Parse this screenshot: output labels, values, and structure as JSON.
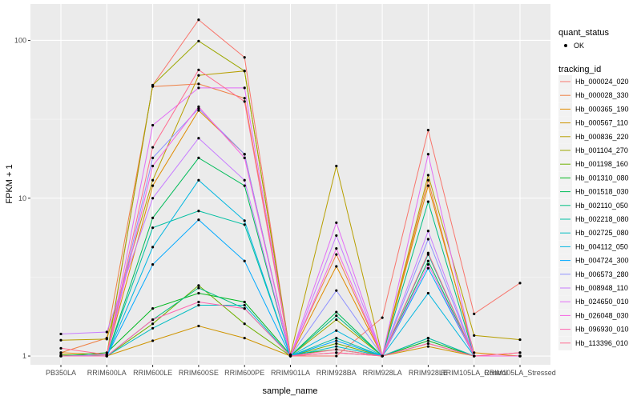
{
  "chart_data": {
    "type": "line",
    "x_axis_title": "sample_name",
    "y_axis_title": "FPKM + 1",
    "y_scale": "log10",
    "ylim": [
      0.88,
      170
    ],
    "y_ticks": [
      1,
      10,
      100
    ],
    "y_tick_labels": [
      "1",
      "10",
      "100"
    ],
    "grid": true,
    "legend_position": "right",
    "categories": [
      "PB350LA",
      "RRIM600LA",
      "RRIM600LE",
      "RRIM600SE",
      "RRIM600PE",
      "RRIM901LA",
      "RRIM928BA",
      "RRIM928LA",
      "RRIM928LE",
      "RRIM105LA_Control",
      "RRIM105LA_Stressed"
    ],
    "quant_legend": {
      "title": "quant_status",
      "entries": [
        "OK"
      ]
    },
    "series_legend_title": "tracking_id",
    "series": [
      {
        "name": "Hb_000024_020",
        "color": "#F8766D",
        "values": [
          1.0,
          1.0,
          52,
          135,
          78,
          1.0,
          1.0,
          1.75,
          27,
          1.85,
          2.9
        ]
      },
      {
        "name": "Hb_000028_330",
        "color": "#EE8044",
        "values": [
          1.05,
          1.3,
          51,
          53,
          43,
          1.02,
          4.4,
          1.0,
          13,
          1.0,
          1.0
        ]
      },
      {
        "name": "Hb_000365_190",
        "color": "#E08B00",
        "values": [
          1.05,
          1.02,
          12,
          36,
          19,
          1.0,
          3.7,
          1.0,
          12,
          1.05,
          1.0
        ]
      },
      {
        "name": "Hb_000567_110",
        "color": "#CF9400",
        "values": [
          1.0,
          1.0,
          1.25,
          1.55,
          1.3,
          1.0,
          1.05,
          1.0,
          1.15,
          1.0,
          1.0
        ]
      },
      {
        "name": "Hb_000836_220",
        "color": "#B79F00",
        "values": [
          1.26,
          1.28,
          13,
          60,
          64,
          1.02,
          16,
          1.0,
          14,
          1.35,
          1.27
        ]
      },
      {
        "name": "Hb_001104_270",
        "color": "#9CA700",
        "values": [
          1.0,
          1.02,
          52,
          99,
          64,
          1.0,
          1.7,
          1.0,
          1.3,
          1.0,
          1.0
        ]
      },
      {
        "name": "Hb_001198_160",
        "color": "#6FB000",
        "values": [
          1.02,
          1.0,
          1.6,
          2.8,
          1.6,
          1.0,
          1.2,
          1.0,
          1.2,
          1.0,
          1.0
        ]
      },
      {
        "name": "Hb_001310_080",
        "color": "#00B81F",
        "values": [
          1.0,
          1.05,
          2.0,
          2.5,
          2.2,
          1.02,
          1.1,
          1.0,
          1.25,
          1.0,
          1.0
        ]
      },
      {
        "name": "Hb_001518_030",
        "color": "#00BC59",
        "values": [
          1.0,
          1.0,
          7.5,
          18,
          12,
          1.0,
          1.9,
          1.0,
          4.0,
          1.0,
          1.0
        ]
      },
      {
        "name": "Hb_002110_050",
        "color": "#00BE81",
        "values": [
          1.0,
          1.0,
          1.7,
          2.7,
          2.0,
          1.0,
          1.8,
          1.0,
          9.5,
          1.0,
          1.0
        ]
      },
      {
        "name": "Hb_002218_080",
        "color": "#00BFA2",
        "values": [
          1.0,
          1.0,
          6.5,
          8.3,
          6.8,
          1.0,
          1.3,
          1.0,
          4.4,
          1.0,
          1.0
        ]
      },
      {
        "name": "Hb_002725_080",
        "color": "#00BDC2",
        "values": [
          1.0,
          1.0,
          1.5,
          2.1,
          2.1,
          1.0,
          1.15,
          1.0,
          1.3,
          1.0,
          1.0
        ]
      },
      {
        "name": "Hb_004112_050",
        "color": "#00B6E0",
        "values": [
          1.0,
          1.0,
          4.9,
          13,
          7.2,
          1.0,
          1.45,
          1.0,
          2.5,
          1.0,
          1.0
        ]
      },
      {
        "name": "Hb_004724_300",
        "color": "#00A9FF",
        "values": [
          1.0,
          1.0,
          3.8,
          7.3,
          4.0,
          1.0,
          1.25,
          1.0,
          3.6,
          1.0,
          1.0
        ]
      },
      {
        "name": "Hb_006573_280",
        "color": "#8F91FF",
        "values": [
          1.0,
          1.02,
          18,
          37,
          19,
          1.0,
          2.6,
          1.0,
          5.5,
          1.0,
          1.0
        ]
      },
      {
        "name": "Hb_008948_110",
        "color": "#C77CFF",
        "values": [
          1.38,
          1.42,
          10,
          24,
          13,
          1.0,
          5.8,
          1.0,
          6.2,
          1.0,
          1.0
        ]
      },
      {
        "name": "Hb_024650_010",
        "color": "#E36EF6",
        "values": [
          1.0,
          1.0,
          29,
          50,
          50,
          1.0,
          7.0,
          1.0,
          19,
          1.0,
          1.0
        ]
      },
      {
        "name": "Hb_026048_030",
        "color": "#F564E3",
        "values": [
          1.0,
          1.0,
          16,
          38,
          18,
          1.0,
          4.8,
          1.0,
          3.8,
          1.0,
          1.0
        ]
      },
      {
        "name": "Hb_096930_010",
        "color": "#FF64B0",
        "values": [
          1.0,
          1.0,
          1.7,
          2.2,
          2.0,
          1.0,
          1.05,
          1.0,
          1.2,
          1.0,
          1.05
        ]
      },
      {
        "name": "Hb_113396_010",
        "color": "#FF6C91",
        "values": [
          1.12,
          1.02,
          21,
          65,
          41,
          1.0,
          1.1,
          1.0,
          4.5,
          1.0,
          1.05
        ]
      }
    ]
  }
}
